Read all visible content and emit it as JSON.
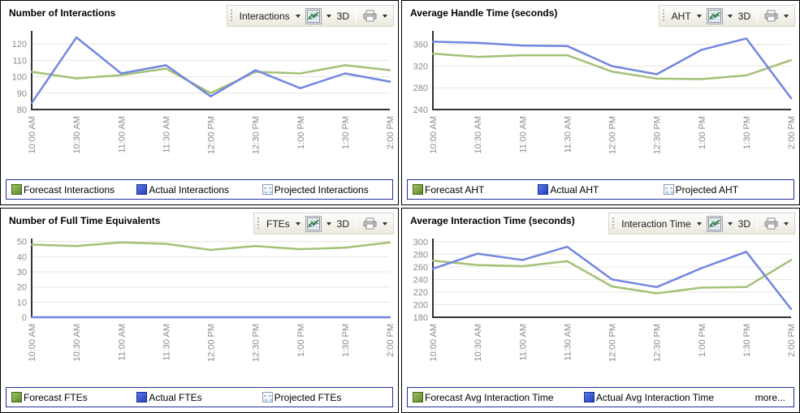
{
  "colors": {
    "forecast_line": "#a4c178",
    "actual_line": "#7286e0",
    "grid_line": "#e8e6e0",
    "axis_line": "#333333",
    "tick_text": "#8a8a8a",
    "legend_border": "#25309b",
    "forecast_swatch": "#6f9c3d",
    "actual_swatch": "#3352cc"
  },
  "categories": [
    "10:00 AM",
    "10:30 AM",
    "11:00 AM",
    "11:30 AM",
    "12:00 PM",
    "12:30 PM",
    "1:00 PM",
    "1:30 PM",
    "2:00 PM"
  ],
  "chart_data": [
    {
      "type": "line",
      "title": "Number of Interactions",
      "categories": [
        "10:00 AM",
        "10:30 AM",
        "11:00 AM",
        "11:30 AM",
        "12:00 PM",
        "12:30 PM",
        "1:00 PM",
        "1:30 PM",
        "2:00 PM"
      ],
      "series": [
        {
          "name": "Forecast Interactions",
          "color": "#a4c178",
          "values": [
            103,
            99,
            101,
            105,
            90,
            103,
            102,
            107,
            104
          ]
        },
        {
          "name": "Actual Interactions",
          "color": "#7286e0",
          "values": [
            84,
            124,
            102,
            107,
            88,
            104,
            93,
            102,
            97
          ]
        }
      ],
      "ylim": [
        80,
        128
      ],
      "yticks": [
        80,
        90,
        100,
        110,
        120
      ],
      "xlabel": "",
      "ylabel": "",
      "grid": true,
      "legend_position": "bottom"
    },
    {
      "type": "line",
      "title": "Average Handle Time (seconds)",
      "categories": [
        "10:00 AM",
        "10:30 AM",
        "11:00 AM",
        "11:30 AM",
        "12:00 PM",
        "12:30 PM",
        "1:00 PM",
        "1:30 PM",
        "2:00 PM"
      ],
      "series": [
        {
          "name": "Forecast AHT",
          "color": "#a4c178",
          "values": [
            343,
            337,
            340,
            340,
            310,
            297,
            296,
            303,
            331
          ]
        },
        {
          "name": "Actual AHT",
          "color": "#7286e0",
          "values": [
            365,
            363,
            358,
            357,
            320,
            305,
            350,
            371,
            261
          ]
        }
      ],
      "ylim": [
        240,
        385
      ],
      "yticks": [
        240,
        280,
        320,
        360
      ],
      "xlabel": "",
      "ylabel": "",
      "grid": true,
      "legend_position": "bottom"
    },
    {
      "type": "line",
      "title": "Number of Full Time Equivalents",
      "categories": [
        "10:00 AM",
        "10:30 AM",
        "11:00 AM",
        "11:30 AM",
        "12:00 PM",
        "12:30 PM",
        "1:00 PM",
        "1:30 PM",
        "2:00 PM"
      ],
      "series": [
        {
          "name": "Forecast FTEs",
          "color": "#a4c178",
          "values": [
            48,
            47,
            49.5,
            48.5,
            44.5,
            47,
            45,
            46,
            49.5
          ]
        },
        {
          "name": "Actual FTEs",
          "color": "#7286e0",
          "values": [
            0,
            0,
            0,
            0,
            0,
            0,
            0,
            0,
            0
          ]
        }
      ],
      "ylim": [
        0,
        52
      ],
      "yticks": [
        0,
        10,
        20,
        30,
        40,
        50
      ],
      "xlabel": "",
      "ylabel": "",
      "grid": true,
      "legend_position": "bottom"
    },
    {
      "type": "line",
      "title": "Average Interaction Time (seconds)",
      "categories": [
        "10:00 AM",
        "10:30 AM",
        "11:00 AM",
        "11:30 AM",
        "12:00 PM",
        "12:30 PM",
        "1:00 PM",
        "1:30 PM",
        "2:00 PM"
      ],
      "series": [
        {
          "name": "Forecast Avg Interaction Time",
          "color": "#a4c178",
          "values": [
            270,
            263,
            261,
            269,
            229,
            218,
            227,
            228,
            271
          ]
        },
        {
          "name": "Actual Avg Interaction Time",
          "color": "#7286e0",
          "values": [
            257,
            281,
            271,
            292,
            240,
            228,
            258,
            284,
            193
          ]
        }
      ],
      "ylim": [
        180,
        305
      ],
      "yticks": [
        180,
        200,
        220,
        240,
        260,
        280,
        300
      ],
      "xlabel": "",
      "ylabel": "",
      "grid": true,
      "legend_position": "bottom"
    }
  ],
  "panels": [
    {
      "title": "Number of Interactions",
      "toolbar": {
        "metric_label": "Interactions",
        "mode_label": "3D"
      },
      "legend": {
        "entries": [
          {
            "label": "Forecast Interactions",
            "swatch": "green"
          },
          {
            "label": "Actual Interactions",
            "swatch": "blue"
          },
          {
            "label": "Projected Interactions",
            "swatch": "projected"
          }
        ]
      }
    },
    {
      "title": "Average Handle Time (seconds)",
      "toolbar": {
        "metric_label": "AHT",
        "mode_label": "3D"
      },
      "legend": {
        "entries": [
          {
            "label": "Forecast AHT",
            "swatch": "green"
          },
          {
            "label": "Actual AHT",
            "swatch": "blue"
          },
          {
            "label": "Projected AHT",
            "swatch": "projected"
          }
        ]
      }
    },
    {
      "title": "Number of Full Time Equivalents",
      "toolbar": {
        "metric_label": "FTEs",
        "mode_label": "3D"
      },
      "legend": {
        "entries": [
          {
            "label": "Forecast FTEs",
            "swatch": "green"
          },
          {
            "label": "Actual FTEs",
            "swatch": "blue"
          },
          {
            "label": "Projected FTEs",
            "swatch": "projected"
          }
        ]
      }
    },
    {
      "title": "Average Interaction Time (seconds)",
      "toolbar": {
        "metric_label": "Interaction Time",
        "mode_label": "3D"
      },
      "legend": {
        "entries": [
          {
            "label": "Forecast Avg Interaction Time",
            "swatch": "green"
          },
          {
            "label": "Actual Avg Interaction Time",
            "swatch": "blue"
          }
        ],
        "more_label": "more..."
      }
    }
  ]
}
